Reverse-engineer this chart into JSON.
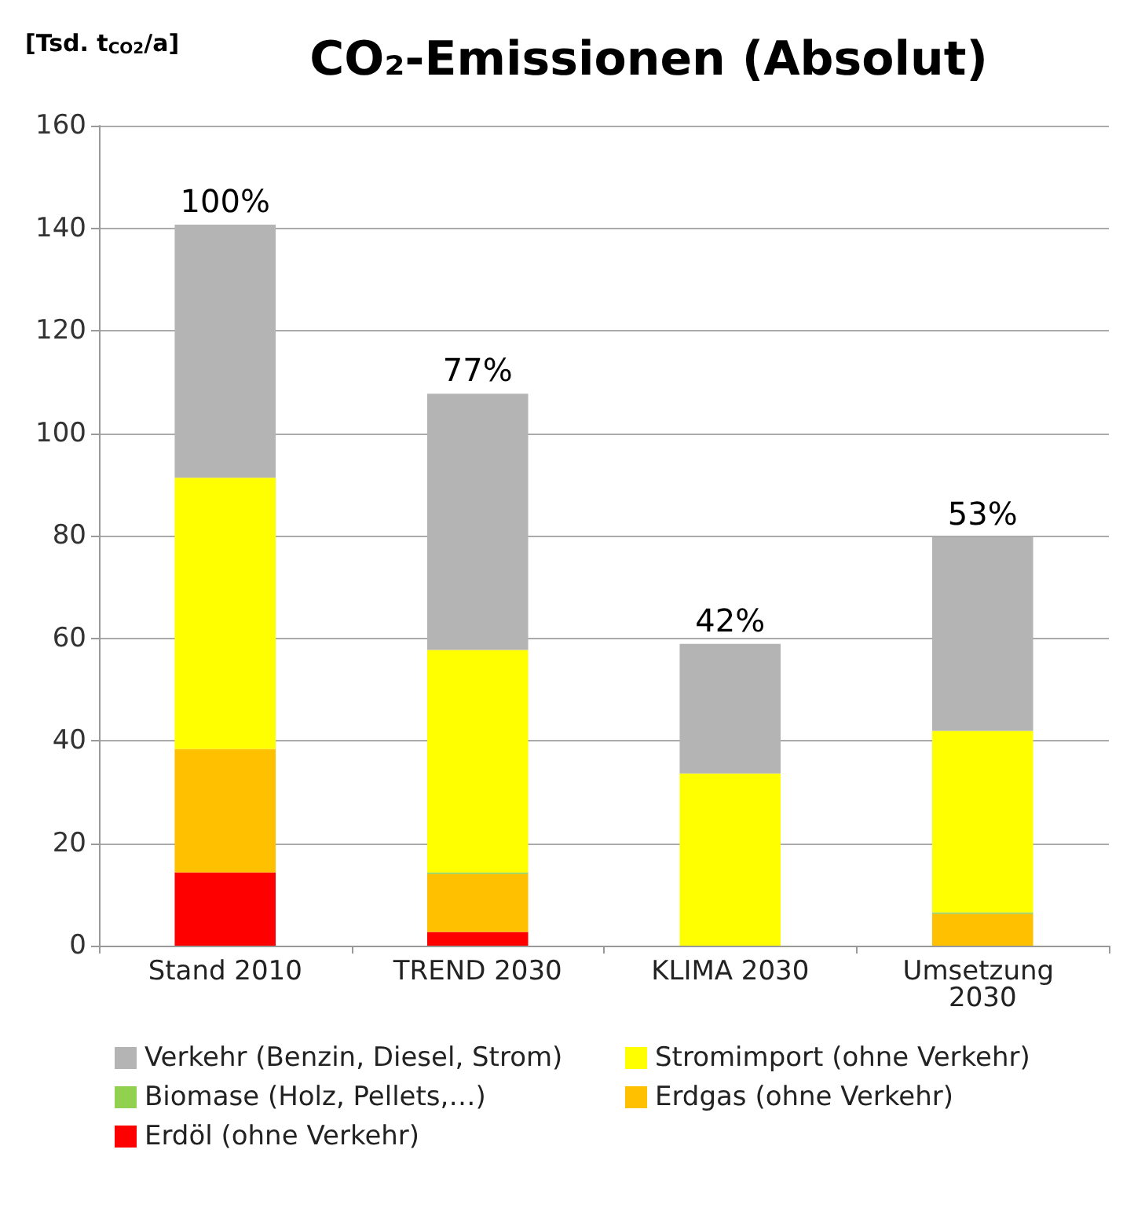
{
  "chart_data": {
    "type": "bar",
    "title": "CO₂-Emissionen (Absolut)",
    "ylabel": "[Tsd. t$_{CO2}$/a]",
    "categories": [
      "Stand 2010",
      "TREND 2030",
      "KLIMA 2030",
      "Umsetzung 2030"
    ],
    "stacked": true,
    "series": [
      {
        "name": "Erdöl (ohne Verkehr)",
        "color": "#ff0000",
        "values": [
          14.3,
          2.7,
          0,
          0
        ]
      },
      {
        "name": "Erdgas (ohne Verkehr)",
        "color": "#ffc000",
        "values": [
          24.1,
          11.3,
          0,
          6.2
        ]
      },
      {
        "name": "Biomase (Holz, Pellets,…)",
        "color": "#92d050",
        "values": [
          0,
          0.3,
          0,
          0.3
        ]
      },
      {
        "name": "Stromimport (ohne Verkehr)",
        "color": "#ffff00",
        "values": [
          52.9,
          43.4,
          33.6,
          35.4
        ]
      },
      {
        "name": "Verkehr (Benzin, Diesel, Strom)",
        "color": "#b4b4b4",
        "values": [
          49.4,
          50,
          25.3,
          37.8
        ]
      }
    ],
    "annotations": [
      {
        "text": "100%",
        "x": "Stand 2010",
        "y": 140.7
      },
      {
        "text": "77%",
        "x": "TREND 2030",
        "y": 107.7
      },
      {
        "text": "42%",
        "x": "KLIMA 2030",
        "y": 58.9
      },
      {
        "text": "53%",
        "x": "Umsetzung 2030",
        "y": 79.7
      }
    ],
    "ylim": [
      0,
      160
    ],
    "yticks": [
      0,
      20,
      40,
      60,
      80,
      100,
      120,
      140,
      160
    ],
    "grid": "y",
    "legend": "bottom"
  }
}
